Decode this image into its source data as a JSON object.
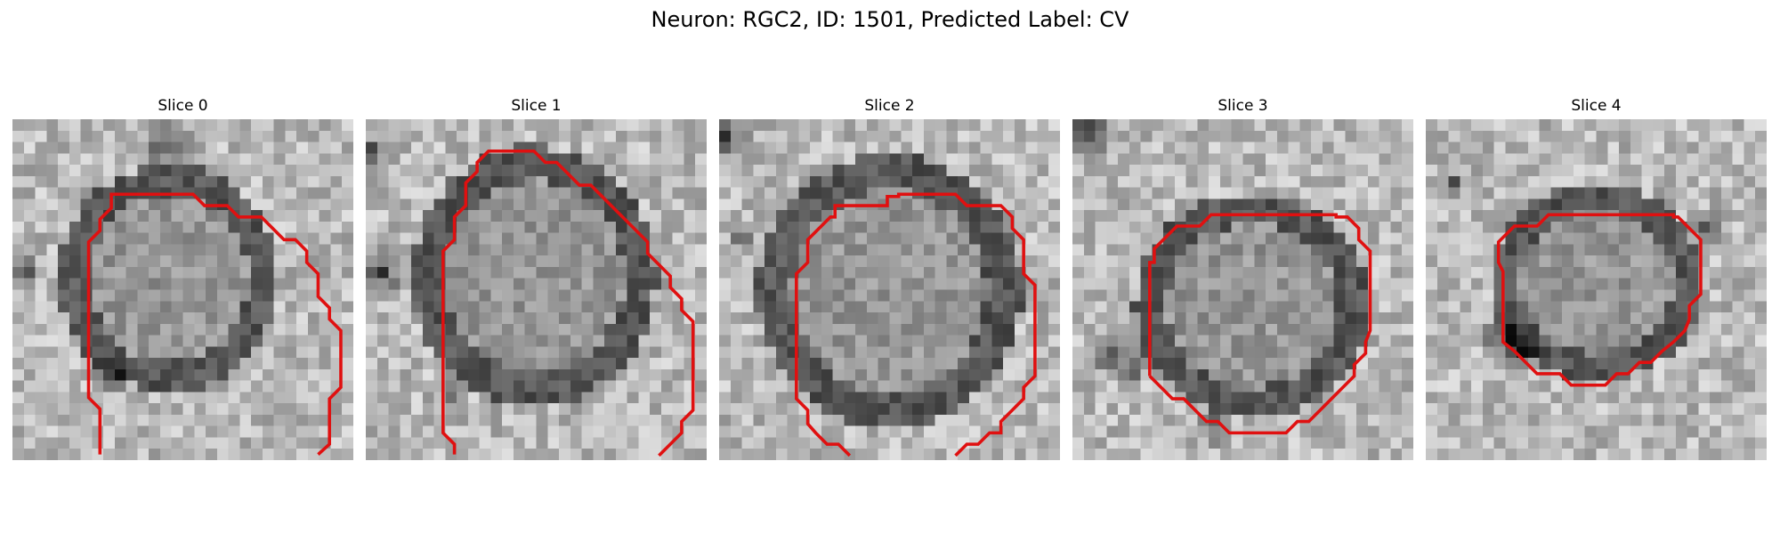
{
  "figure": {
    "title": "Neuron: RGC2, ID: 1501, Predicted Label: CV"
  },
  "panels": [
    {
      "label": "Slice 0"
    },
    {
      "label": "Slice 1"
    },
    {
      "label": "Slice 2"
    },
    {
      "label": "Slice 3"
    },
    {
      "label": "Slice 4"
    }
  ],
  "colors": {
    "contour": "#e01010",
    "background": "#ffffff"
  }
}
